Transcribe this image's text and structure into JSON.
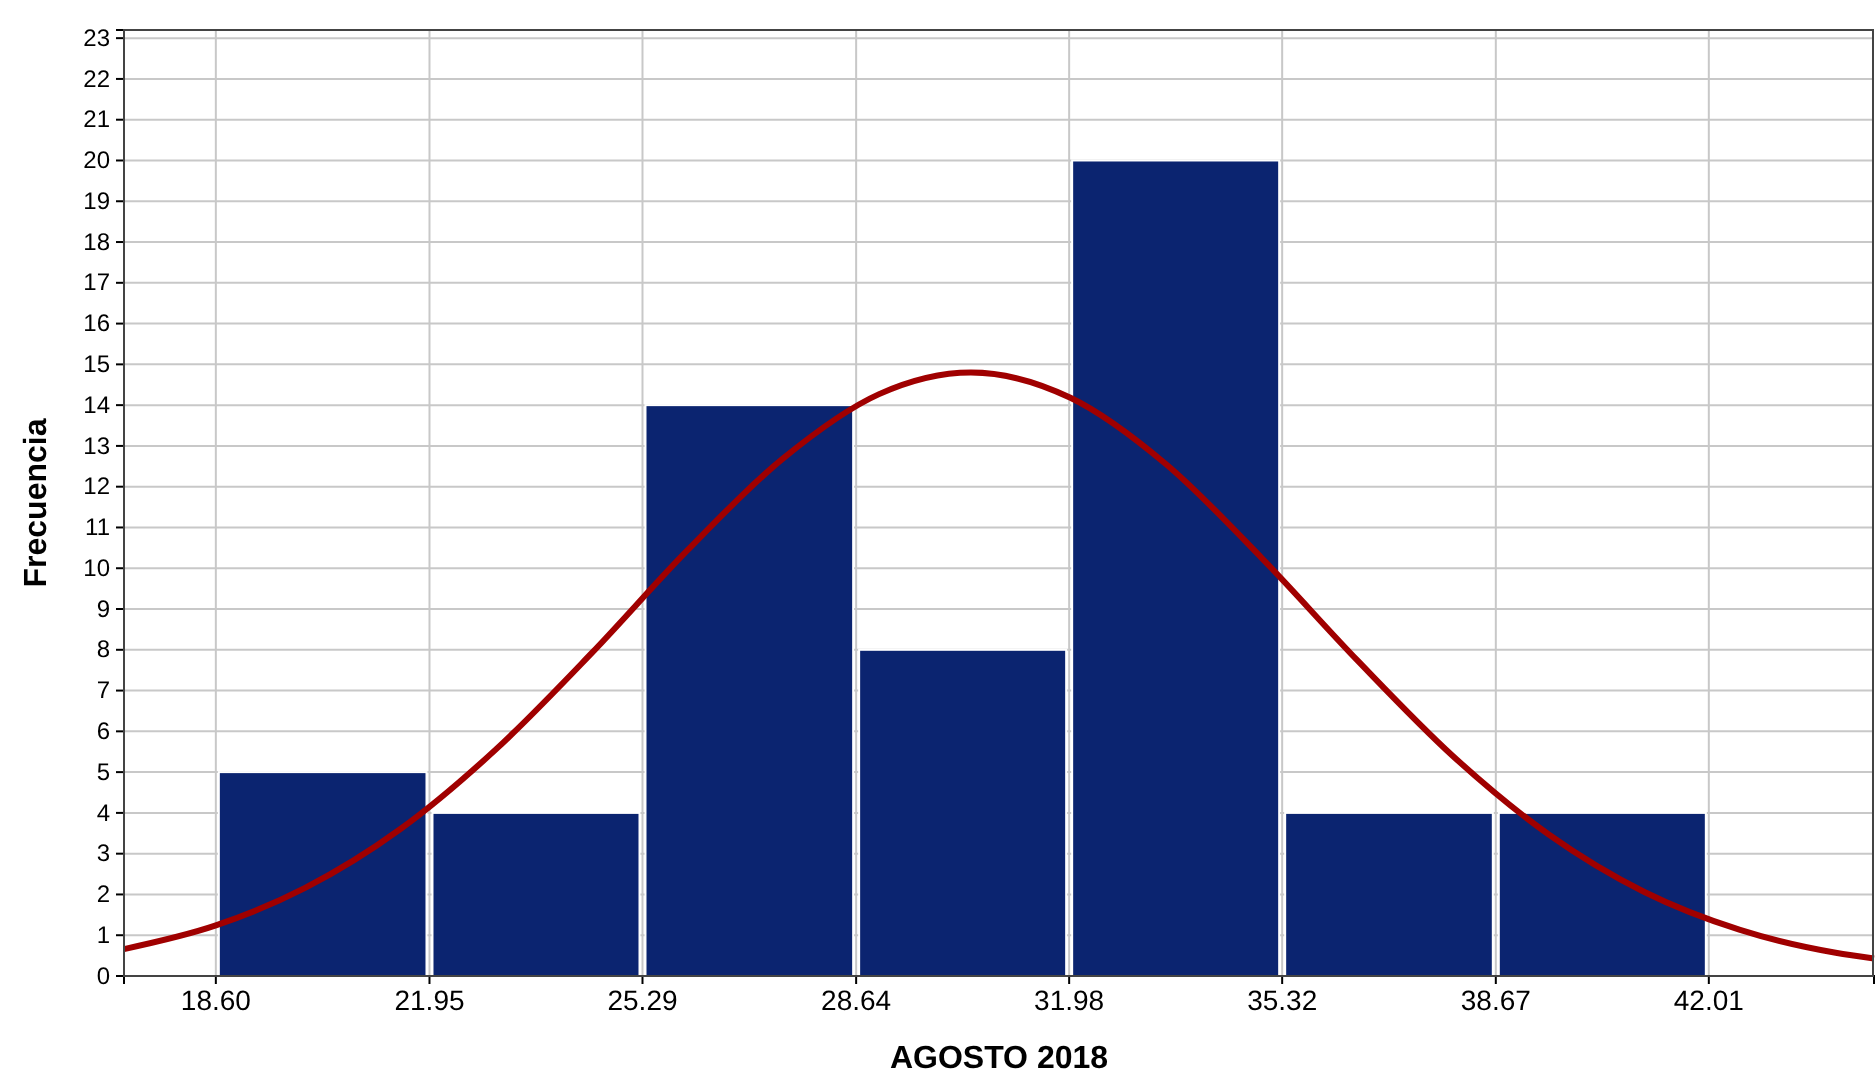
{
  "chart_data": {
    "type": "histogram",
    "xlabel": "AGOSTO 2018",
    "ylabel": "Frecuencia",
    "bins": [
      18.6,
      21.95,
      25.29,
      28.64,
      31.98,
      35.32,
      38.67,
      42.01
    ],
    "series": [
      {
        "color": "#0b2470",
        "values": [
          5,
          4,
          14,
          8,
          20,
          4,
          4
        ]
      },
      {
        "type": "line",
        "color": "#a00000",
        "x": [
          17.16,
          18.6,
          20,
          21.5,
          23,
          24.5,
          26,
          27.5,
          29,
          30.44,
          32,
          33.5,
          35,
          36.5,
          38,
          39.5,
          41,
          42.5,
          44,
          44.6
        ],
        "values": [
          0.66,
          1.24,
          2.16,
          3.61,
          5.57,
          7.93,
          10.45,
          12.7,
          14.27,
          14.8,
          14.18,
          12.55,
          10.25,
          7.74,
          5.39,
          3.47,
          2.06,
          1.13,
          0.57,
          0.43
        ]
      }
    ],
    "xlim": [
      17.16,
      44.6
    ],
    "ylim": [
      0,
      23.2
    ],
    "xticks": [
      {
        "value": 18.6,
        "label": "18.60"
      },
      21.95,
      25.29,
      28.64,
      31.98,
      35.32,
      38.67,
      42.01
    ],
    "yticks": [
      0,
      1,
      2,
      3,
      4,
      5,
      6,
      7,
      8,
      9,
      10,
      11,
      12,
      13,
      14,
      15,
      16,
      17,
      18,
      19,
      20,
      21,
      22,
      23
    ],
    "grid": true
  }
}
